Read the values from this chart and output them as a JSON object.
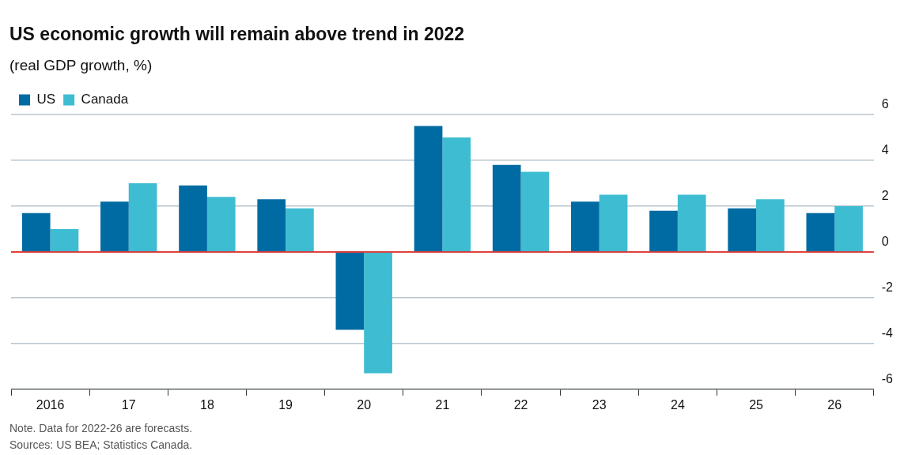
{
  "chart_data": {
    "type": "bar",
    "title": "US economic growth will remain above trend in 2022",
    "subtitle": "(real GDP growth, %)",
    "categories": [
      "2016",
      "17",
      "18",
      "19",
      "20",
      "21",
      "22",
      "23",
      "24",
      "25",
      "26"
    ],
    "series": [
      {
        "name": "US",
        "color": "#006ba2",
        "values": [
          1.7,
          2.2,
          2.9,
          2.3,
          -3.4,
          5.5,
          3.8,
          2.2,
          1.8,
          1.9,
          1.7
        ]
      },
      {
        "name": "Canada",
        "color": "#3ebcd2",
        "values": [
          1.0,
          3.0,
          2.4,
          1.9,
          -5.3,
          5.0,
          3.5,
          2.5,
          2.5,
          2.3,
          2.0
        ]
      }
    ],
    "ylim": [
      -6,
      6
    ],
    "yticks": [
      -6,
      -4,
      -2,
      0,
      2,
      4,
      6
    ],
    "grid": "y",
    "legend": "top left",
    "ref_lines": [
      {
        "axis": "y",
        "value": 0,
        "color": "#e3120b"
      }
    ],
    "annotations": [
      "Note. Data for 2022-26 are forecasts.",
      "Sources: US BEA; Statistics Canada."
    ]
  }
}
